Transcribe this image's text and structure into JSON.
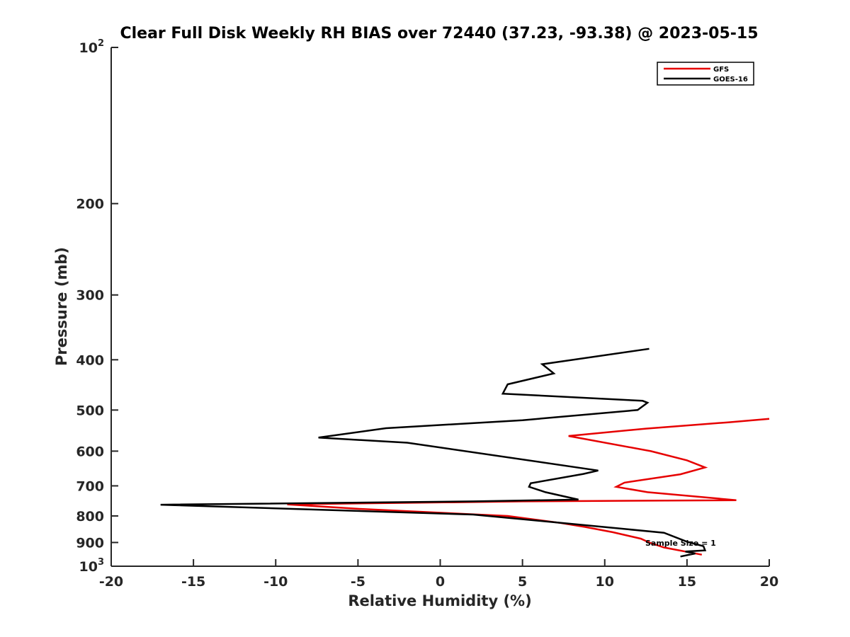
{
  "chart_data": {
    "type": "line",
    "title": "Clear Full Disk Weekly RH BIAS over 72440 (37.23, -93.38) @ 2023-05-15",
    "xlabel": "Relative Humidity (%)",
    "ylabel": "Pressure (mb)",
    "xlim": [
      -20,
      20
    ],
    "ylim": [
      100,
      1000
    ],
    "y_scale": "log",
    "y_reversed": true,
    "x_ticks": [
      -20,
      -15,
      -10,
      -5,
      0,
      5,
      10,
      15,
      20
    ],
    "x_tick_labels": [
      "-20",
      "-15",
      "-10",
      "-5",
      "0",
      "5",
      "10",
      "15",
      "20"
    ],
    "y_ticks": [
      100,
      200,
      300,
      400,
      500,
      600,
      700,
      800,
      900,
      1000
    ],
    "y_tick_labels": [
      {
        "text": "10",
        "sup": "2"
      },
      {
        "text": "200",
        "sup": ""
      },
      {
        "text": "300",
        "sup": ""
      },
      {
        "text": "400",
        "sup": ""
      },
      {
        "text": "500",
        "sup": ""
      },
      {
        "text": "600",
        "sup": ""
      },
      {
        "text": "700",
        "sup": ""
      },
      {
        "text": "800",
        "sup": ""
      },
      {
        "text": "900",
        "sup": ""
      },
      {
        "text": "10",
        "sup": "3"
      }
    ],
    "grid": false,
    "legend_position": "top-right",
    "annotation": "Sample Size = 1",
    "series": [
      {
        "name": "GFS",
        "color": "#e60000",
        "points": [
          {
            "x": 20.0,
            "y": 520
          },
          {
            "x": 17.5,
            "y": 528
          },
          {
            "x": 12.5,
            "y": 543
          },
          {
            "x": 7.8,
            "y": 561
          },
          {
            "x": 12.8,
            "y": 600
          },
          {
            "x": 15.0,
            "y": 625
          },
          {
            "x": 16.1,
            "y": 645
          },
          {
            "x": 14.6,
            "y": 665
          },
          {
            "x": 11.2,
            "y": 690
          },
          {
            "x": 10.7,
            "y": 703
          },
          {
            "x": 12.6,
            "y": 720
          },
          {
            "x": 18.0,
            "y": 746
          },
          {
            "x": 5.0,
            "y": 750
          },
          {
            "x": -9.3,
            "y": 760
          },
          {
            "x": -5.0,
            "y": 775
          },
          {
            "x": 4.1,
            "y": 800
          },
          {
            "x": 7.3,
            "y": 825
          },
          {
            "x": 8.8,
            "y": 840
          },
          {
            "x": 10.5,
            "y": 860
          },
          {
            "x": 12.2,
            "y": 885
          },
          {
            "x": 12.7,
            "y": 900
          },
          {
            "x": 13.6,
            "y": 920
          },
          {
            "x": 15.9,
            "y": 950
          }
        ]
      },
      {
        "name": "GOES-16",
        "color": "#000000",
        "points": [
          {
            "x": 12.7,
            "y": 381
          },
          {
            "x": 6.2,
            "y": 408
          },
          {
            "x": 6.7,
            "y": 420
          },
          {
            "x": 6.9,
            "y": 425
          },
          {
            "x": 4.1,
            "y": 446
          },
          {
            "x": 3.8,
            "y": 465
          },
          {
            "x": 12.3,
            "y": 480
          },
          {
            "x": 12.6,
            "y": 484
          },
          {
            "x": 12.0,
            "y": 500
          },
          {
            "x": 5.0,
            "y": 523
          },
          {
            "x": -3.3,
            "y": 542
          },
          {
            "x": -7.4,
            "y": 565
          },
          {
            "x": -2.0,
            "y": 578
          },
          {
            "x": 9.6,
            "y": 654
          },
          {
            "x": 8.7,
            "y": 664
          },
          {
            "x": 5.5,
            "y": 692
          },
          {
            "x": 5.4,
            "y": 703
          },
          {
            "x": 6.4,
            "y": 720
          },
          {
            "x": 8.4,
            "y": 744
          },
          {
            "x": 2.0,
            "y": 750
          },
          {
            "x": -17.0,
            "y": 761
          },
          {
            "x": 2.0,
            "y": 795
          },
          {
            "x": 7.0,
            "y": 823
          },
          {
            "x": 13.6,
            "y": 862
          },
          {
            "x": 15.0,
            "y": 897
          },
          {
            "x": 16.0,
            "y": 915
          },
          {
            "x": 16.1,
            "y": 932
          },
          {
            "x": 14.9,
            "y": 937
          },
          {
            "x": 15.5,
            "y": 945
          },
          {
            "x": 14.6,
            "y": 958
          }
        ]
      }
    ]
  }
}
